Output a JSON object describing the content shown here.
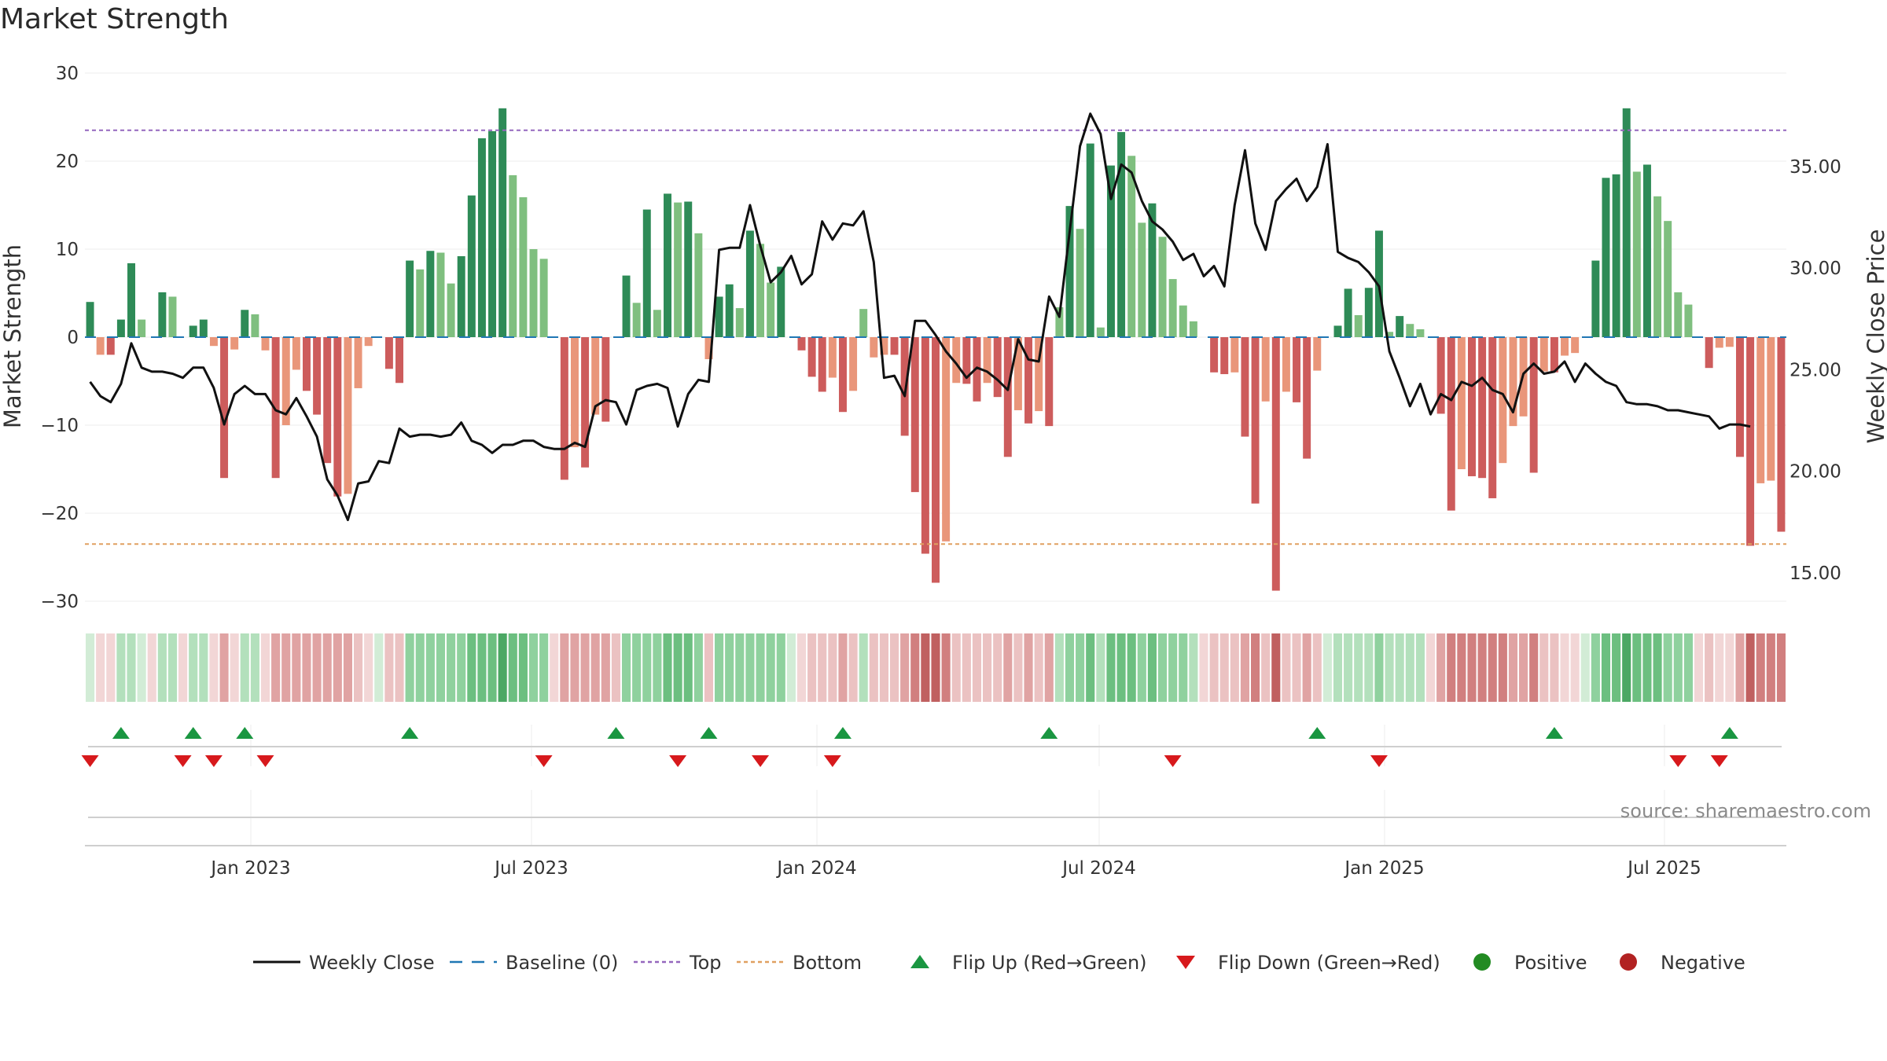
{
  "chart_data": {
    "type": "bar",
    "title": "Market Strength",
    "ylabel": "Market Strength",
    "y2label": "Weekly Close Price",
    "ylim": [
      -30,
      30
    ],
    "y2lim": [
      13.6,
      39.6
    ],
    "yticks": [
      "30",
      "20",
      "10",
      "0",
      "−10",
      "−20",
      "−30"
    ],
    "y2ticks": [
      "35.00",
      "30.00",
      "25.00",
      "20.00",
      "15.00"
    ],
    "xticks": [
      "Jan 2023",
      "Jul 2023",
      "Jan 2024",
      "Jul 2024",
      "Jan 2025",
      "Jul 2025"
    ],
    "top_level": 23.5,
    "bottom_level": -23.5,
    "baseline": 0,
    "strength": [
      4,
      -2,
      -2,
      2,
      8.4,
      2,
      0,
      5.1,
      4.6,
      0,
      1.3,
      2,
      -1,
      -16,
      -1.4,
      3.1,
      2.6,
      -1.5,
      -16,
      -10,
      -3.7,
      -6.1,
      -8.8,
      -14.3,
      -18.1,
      -17.8,
      -5.8,
      -1,
      0,
      -3.6,
      -5.2,
      8.7,
      7.7,
      9.8,
      9.6,
      6.1,
      9.2,
      16.1,
      22.6,
      23.4,
      26,
      18.4,
      15.9,
      10,
      8.9,
      0,
      -16.2,
      -12.5,
      -14.8,
      -8.8,
      -9.6,
      0,
      7,
      3.9,
      14.5,
      3.1,
      16.3,
      15.3,
      15.4,
      11.8,
      -2.5,
      4.6,
      6,
      3.3,
      12.1,
      10.6,
      6.2,
      8,
      0,
      -1.5,
      -4.5,
      -6.2,
      -4.6,
      -8.5,
      -6.1,
      3.2,
      -2.3,
      -2,
      -2,
      -11.2,
      -17.6,
      -24.6,
      -27.9,
      -23.2,
      -5.2,
      -5.3,
      -7.3,
      -5.2,
      -6.8,
      -13.6,
      -8.3,
      -9.8,
      -8.4,
      -10.1,
      3.4,
      14.9,
      12.3,
      22,
      1.1,
      19.5,
      23.3,
      20.6,
      13,
      15.2,
      11.4,
      6.6,
      3.6,
      1.8,
      0,
      -4,
      -4.2,
      -4,
      -11.3,
      -18.9,
      -7.3,
      -28.8,
      -6.2,
      -7.4,
      -13.8,
      -3.8,
      0,
      1.3,
      5.5,
      2.5,
      5.6,
      12.1,
      0.6,
      2.4,
      1.5,
      0.9,
      0,
      -8.7,
      -19.7,
      -15,
      -15.8,
      -16,
      -18.3,
      -14.3,
      -10.1,
      -9,
      -15.4,
      -3.9,
      -4,
      -2.1,
      -1.8,
      0,
      8.7,
      18.1,
      18.5,
      26,
      18.8,
      19.6,
      16,
      13.2,
      5.1,
      3.7,
      0,
      -3.5,
      -1.2,
      -1.1,
      -13.6,
      -23.7,
      -16.6,
      -16.3,
      -22.1
    ],
    "close": [
      24.4,
      23.7,
      23.4,
      24.3,
      26.3,
      25.1,
      24.9,
      24.9,
      24.8,
      24.6,
      25.1,
      25.1,
      24.1,
      22.3,
      23.8,
      24.2,
      23.8,
      23.8,
      23,
      22.8,
      23.6,
      22.7,
      21.7,
      19.6,
      18.8,
      17.6,
      19.4,
      19.5,
      20.5,
      20.4,
      22.1,
      21.7,
      21.8,
      21.8,
      21.7,
      21.8,
      22.4,
      21.5,
      21.3,
      20.9,
      21.3,
      21.3,
      21.5,
      21.5,
      21.2,
      21.1,
      21.1,
      21.4,
      21.2,
      23.2,
      23.5,
      23.4,
      22.3,
      24,
      24.2,
      24.3,
      24.1,
      22.2,
      23.8,
      24.5,
      24.4,
      30.9,
      31,
      31,
      33.1,
      31.1,
      29.3,
      29.8,
      30.6,
      29.2,
      29.7,
      32.3,
      31.4,
      32.2,
      32.1,
      32.8,
      30.3,
      24.6,
      24.7,
      23.7,
      27.4,
      27.4,
      26.7,
      25.9,
      25.3,
      24.6,
      25.1,
      24.9,
      24.5,
      24,
      26.5,
      25.5,
      25.4,
      28.6,
      27.6,
      31.8,
      36,
      37.6,
      36.6,
      33.4,
      35.1,
      34.7,
      33.3,
      32.3,
      31.9,
      31.3,
      30.4,
      30.7,
      29.6,
      30.1,
      29.1,
      33.1,
      35.8,
      32.2,
      30.9,
      33.3,
      33.9,
      34.4,
      33.3,
      34,
      36.1,
      30.8,
      30.5,
      30.3,
      29.8,
      29.1,
      25.9,
      24.6,
      23.2,
      24.3,
      22.8,
      23.8,
      23.5,
      24.4,
      24.2,
      24.6,
      24,
      23.8,
      22.9,
      24.8,
      25.3,
      24.8,
      24.9,
      25.4,
      24.4,
      25.3,
      24.8,
      24.4,
      24.2,
      23.4,
      23.3,
      23.3,
      23.2,
      23,
      23,
      22.9,
      22.8,
      22.7,
      22.1,
      22.3,
      22.3,
      22.2
    ],
    "heat_levels": [
      1,
      1,
      1,
      2,
      2,
      1,
      1,
      2,
      2,
      1,
      2,
      2,
      1,
      3,
      1,
      2,
      2,
      1,
      3,
      3,
      3,
      3,
      3,
      3,
      3,
      3,
      2,
      1,
      1,
      2,
      2,
      3,
      3,
      3,
      3,
      3,
      3,
      4,
      4,
      4,
      5,
      4,
      4,
      3,
      3,
      1,
      3,
      3,
      3,
      3,
      3,
      2,
      3,
      3,
      3,
      3,
      4,
      4,
      4,
      3,
      2,
      3,
      3,
      3,
      3,
      3,
      3,
      3,
      1,
      1,
      2,
      2,
      2,
      3,
      2,
      2,
      2,
      2,
      2,
      3,
      4,
      5,
      5,
      4,
      2,
      2,
      2,
      2,
      2,
      3,
      2,
      3,
      2,
      3,
      2,
      3,
      3,
      4,
      2,
      4,
      4,
      4,
      3,
      4,
      3,
      3,
      3,
      2,
      1,
      2,
      2,
      2,
      3,
      4,
      2,
      5,
      2,
      2,
      3,
      2,
      1,
      2,
      2,
      2,
      2,
      3,
      2,
      2,
      2,
      2,
      1,
      3,
      4,
      4,
      4,
      4,
      4,
      4,
      3,
      3,
      4,
      2,
      2,
      1,
      1,
      1,
      3,
      4,
      4,
      5,
      4,
      4,
      4,
      3,
      3,
      3,
      1,
      2,
      1,
      1,
      3,
      5,
      4,
      4,
      4
    ],
    "flip_up_at": [
      3,
      10,
      15,
      31,
      51,
      60,
      73,
      93,
      119,
      142,
      159
    ],
    "flip_down_at": [
      0,
      9,
      12,
      17,
      44,
      57,
      65,
      72,
      105,
      125,
      154,
      158
    ],
    "series": [
      {
        "name": "Weekly Close",
        "color": "#111111"
      },
      {
        "name": "Baseline (0)",
        "color": "#1f77b4"
      },
      {
        "name": "Top",
        "color": "#9467bd"
      },
      {
        "name": "Bottom",
        "color": "#e0a060"
      },
      {
        "name": "Flip Up (Red→Green)",
        "color": "#1a9641"
      },
      {
        "name": "Flip Down (Green→Red)",
        "color": "#d7191c"
      },
      {
        "name": "Positive",
        "color": "#228b22"
      },
      {
        "name": "Negative",
        "color": "#b22222"
      }
    ],
    "colors": {
      "pos_strong": "#2e8b57",
      "pos_light": "#7fbf7f",
      "neg_strong": "#cd5c5c",
      "neg_light": "#e9967a",
      "heat_pos": [
        "#ffffff",
        "#d2ecd6",
        "#b3e0bc",
        "#8fd19e",
        "#6cbf80",
        "#4ca864"
      ],
      "heat_neg": [
        "#ffffff",
        "#f2d6d6",
        "#ebc2c2",
        "#e0a3a3",
        "#d17f7f",
        "#c06060"
      ]
    }
  },
  "source_text": "source: sharemaestro.com"
}
